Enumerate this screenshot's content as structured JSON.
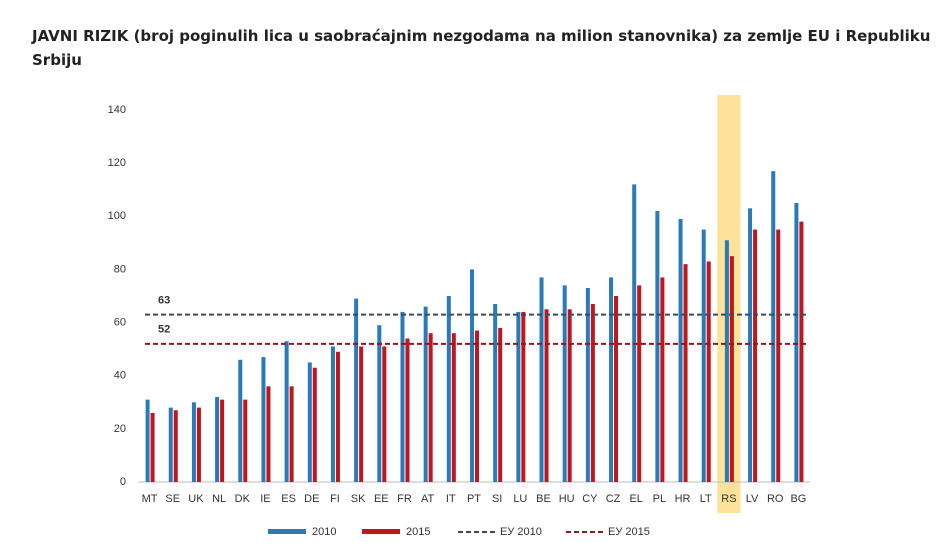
{
  "chart_data": {
    "type": "bar",
    "title": "JAVNI RIZIK (broj poginulih lica u saobraćajnim nezgodama na milion stanovnika) za zemlje EU i Republiku Srbiju",
    "categories": [
      "MT",
      "SE",
      "UK",
      "NL",
      "DK",
      "IE",
      "ES",
      "DE",
      "FI",
      "SK",
      "EE",
      "FR",
      "AT",
      "IT",
      "PT",
      "SI",
      "LU",
      "BE",
      "HU",
      "CY",
      "CZ",
      "EL",
      "PL",
      "HR",
      "LT",
      "RS",
      "LV",
      "RO",
      "BG"
    ],
    "series": [
      {
        "name": "2010",
        "color": "#2a7ab8",
        "values": [
          31,
          28,
          30,
          32,
          46,
          47,
          53,
          45,
          51,
          69,
          59,
          64,
          66,
          70,
          80,
          67,
          64,
          77,
          74,
          73,
          77,
          112,
          102,
          99,
          95,
          91,
          103,
          117,
          105
        ]
      },
      {
        "name": "2015",
        "color": "#c0171f",
        "values": [
          26,
          27,
          28,
          31,
          31,
          36,
          36,
          43,
          49,
          51,
          51,
          54,
          56,
          56,
          57,
          58,
          64,
          65,
          65,
          67,
          70,
          74,
          77,
          82,
          83,
          85,
          95,
          95,
          98
        ]
      }
    ],
    "reference_lines": [
      {
        "name": "ЕУ 2010",
        "value": 63,
        "color": "#3b4a63",
        "label_color": "#3a5da0"
      },
      {
        "name": "ЕУ 2015",
        "value": 52,
        "color": "#8e1a1c",
        "label_color": "#9a1c1e"
      }
    ],
    "highlight": "RS",
    "highlight_color": "#fde39a",
    "ylim": [
      0,
      140
    ],
    "yticks": [
      0,
      20,
      40,
      60,
      80,
      100,
      120,
      140
    ],
    "grid": false
  }
}
